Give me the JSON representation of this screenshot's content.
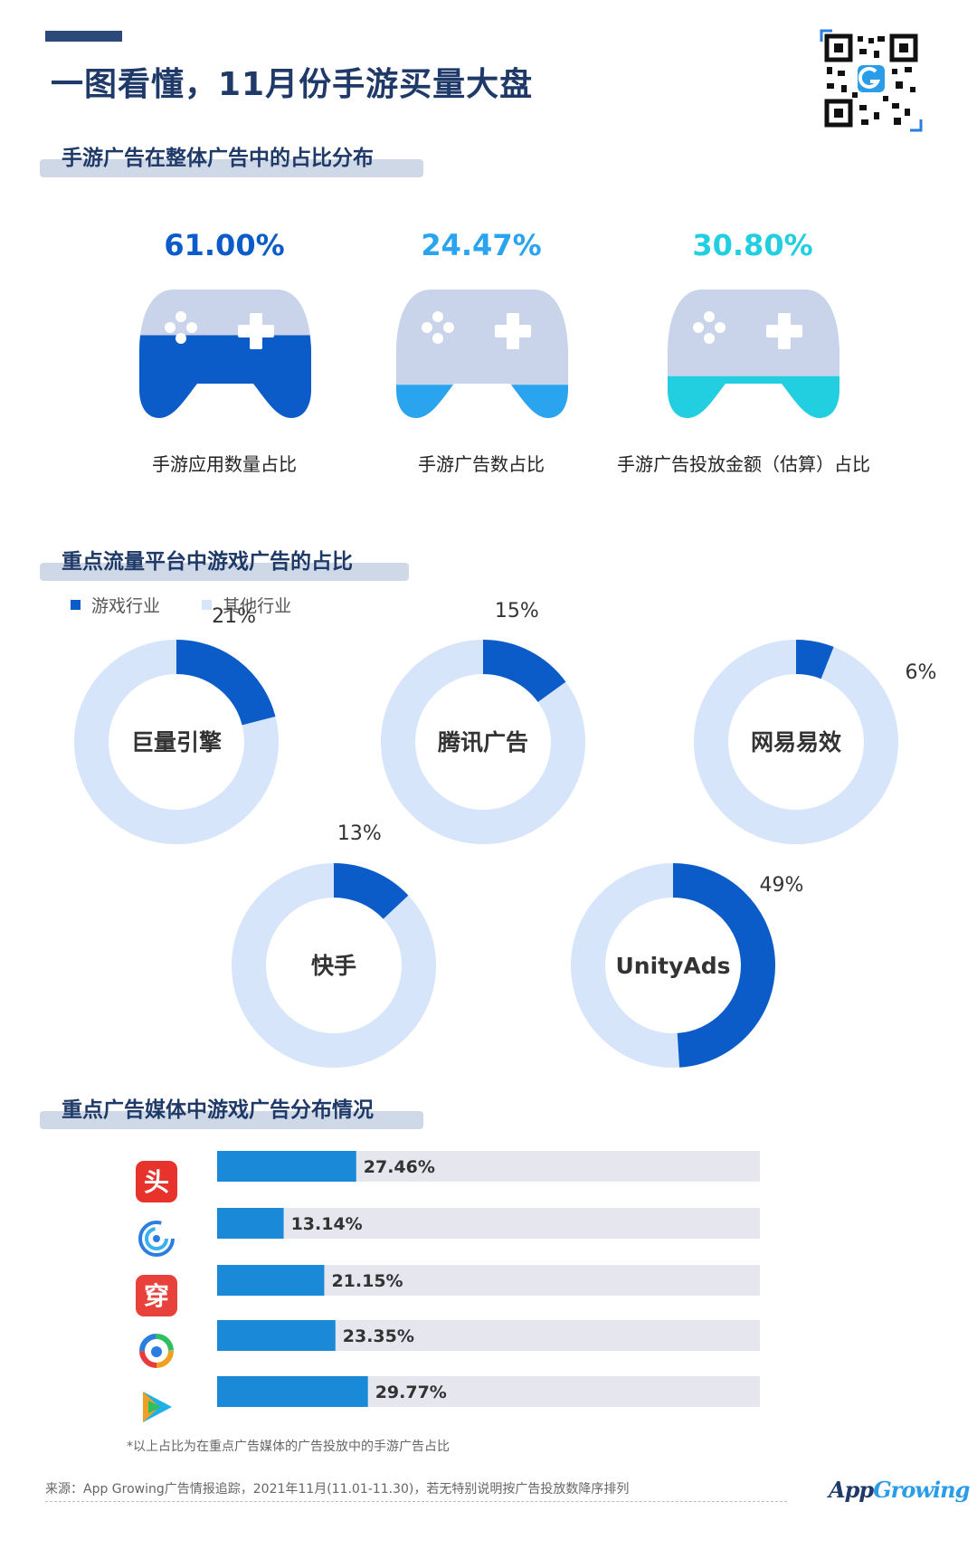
{
  "header": {
    "title": "一图看懂，11月份手游买量大盘"
  },
  "section1": {
    "title": "手游广告在整体广告中的占比分布",
    "items": [
      {
        "value_text": "61.00%",
        "value": 61.0,
        "label": "手游应用数量占比",
        "color": "#0b5cc8"
      },
      {
        "value_text": "24.47%",
        "value": 24.47,
        "label": "手游广告数占比",
        "color": "#2aa4ef"
      },
      {
        "value_text": "30.80%",
        "value": 30.8,
        "label": "手游广告投放金额（估算）占比",
        "color": "#22cfe0"
      }
    ]
  },
  "section2": {
    "title": "重点流量平台中游戏广告的占比",
    "legend": [
      {
        "label": "游戏行业",
        "color": "#0b5cc8"
      },
      {
        "label": "其他行业",
        "color": "#d6e5fa"
      }
    ],
    "donuts": [
      {
        "name": "巨量引擎",
        "value": 21,
        "value_text": "21%"
      },
      {
        "name": "腾讯广告",
        "value": 15,
        "value_text": "15%"
      },
      {
        "name": "网易易效",
        "value": 6,
        "value_text": "6%"
      },
      {
        "name": "快手",
        "value": 13,
        "value_text": "13%"
      },
      {
        "name": "UnityAds",
        "value": 49,
        "value_text": "49%"
      }
    ]
  },
  "section3": {
    "title": "重点广告媒体中游戏广告分布情况",
    "icons": [
      {
        "icon": "toutiao-icon",
        "glyph": "头",
        "color": "#e8322c"
      },
      {
        "icon": "ring-app-icon",
        "glyph": "",
        "color": "#2b7de0"
      },
      {
        "icon": "chuanshanjia-icon",
        "glyph": "穿",
        "color": "#e8403a"
      },
      {
        "icon": "colorful-circle-icon",
        "glyph": "",
        "color": "#f0a020"
      },
      {
        "icon": "video-play-icon",
        "glyph": "",
        "color": "#20b0e8"
      }
    ],
    "footnote": "*以上占比为在重点广告媒体的广告投放中的手游广告占比"
  },
  "chart_data": [
    {
      "type": "pie",
      "title": "手游广告在整体广告中的占比分布",
      "categories": [
        "手游应用数量占比",
        "手游广告数占比",
        "手游广告投放金额（估算）占比"
      ],
      "values": [
        61.0,
        24.47,
        30.8
      ]
    },
    {
      "type": "pie",
      "title": "重点流量平台中游戏广告的占比",
      "categories": [
        "巨量引擎",
        "腾讯广告",
        "网易易效",
        "快手",
        "UnityAds"
      ],
      "series": [
        {
          "name": "游戏行业",
          "values": [
            21,
            15,
            6,
            13,
            49
          ]
        },
        {
          "name": "其他行业",
          "values": [
            79,
            85,
            94,
            87,
            51
          ]
        }
      ]
    },
    {
      "type": "bar",
      "title": "重点广告媒体中游戏广告分布情况",
      "categories": [
        "头",
        "ring-app",
        "穿",
        "colorful-circle",
        "video-play"
      ],
      "values": [
        27.46,
        13.14,
        21.15,
        23.35,
        29.77
      ],
      "value_labels": [
        "27.46%",
        "13.14%",
        "21.15%",
        "23.35%",
        "29.77%"
      ],
      "ylim": [
        0,
        100
      ]
    }
  ],
  "footer": {
    "source": "来源：App Growing广告情报追踪，2021年11月(11.01-11.30)，若无特别说明按广告投放数降序排列",
    "logo_a": "App",
    "logo_b": "Growing"
  }
}
